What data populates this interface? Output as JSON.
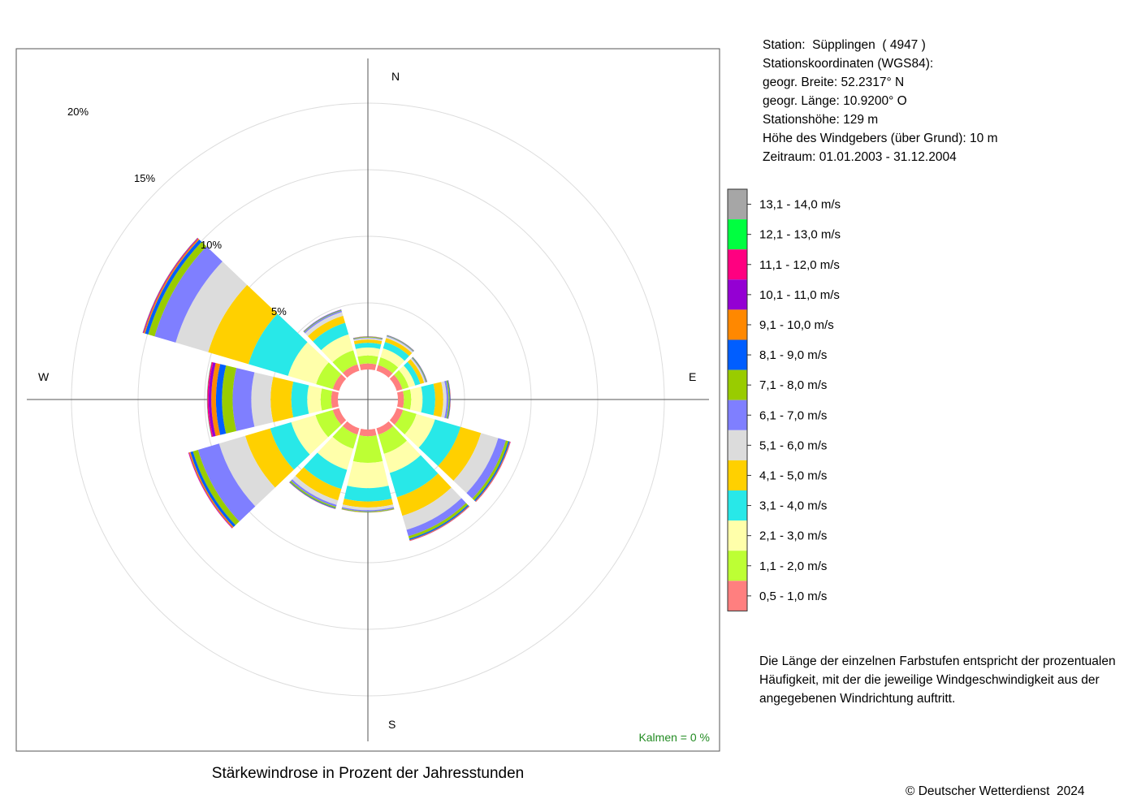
{
  "header": {
    "station": "Station:  Süpplingen  ( 4947 )",
    "coords_label": "Stationskoordinaten (WGS84):",
    "latitude": "geogr. Breite: 52.2317° N",
    "longitude": "geogr. Länge: 10.9200° O",
    "elevation": "Stationshöhe: 129 m",
    "anemometer_height": "Höhe des Windgebers (über Grund): 10 m",
    "period": "Zeitraum: 01.01.2003 - 31.12.2004"
  },
  "note": "Die Länge der einzelnen Farbstufen entspricht der prozentualen Häufigkeit, mit der die jeweilige Windgeschwindigkeit aus der angegebenen Windrichtung auftritt.",
  "footer": {
    "title": "Stärkewindrose in Prozent der Jahresstunden",
    "copyright": "© Deutscher Wetterdienst  2024"
  },
  "chart_data": {
    "type": "wind-rose",
    "title": "Stärkewindrose in Prozent der Jahresstunden",
    "unit": "%",
    "calm_label": "Kalmen  =  0 %",
    "compass_labels": [
      "N",
      "E",
      "S",
      "W"
    ],
    "radial_ticks": [
      5,
      10,
      15,
      20
    ],
    "radial_tick_labels": [
      "5%",
      "10%",
      "15%",
      "20%"
    ],
    "direction_step_deg": 30,
    "directions_deg": [
      0,
      30,
      60,
      90,
      120,
      150,
      180,
      210,
      240,
      270,
      300,
      330
    ],
    "classes": [
      {
        "label": "0,5 - 1,0 m/s",
        "color": "#ff7f7f"
      },
      {
        "label": "1,1 - 2,0 m/s",
        "color": "#bdff34"
      },
      {
        "label": "2,1 - 3,0 m/s",
        "color": "#ffffaa"
      },
      {
        "label": "3,1 - 4,0 m/s",
        "color": "#28e8e8"
      },
      {
        "label": "4,1 - 5,0 m/s",
        "color": "#ffd000"
      },
      {
        "label": "5,1 - 6,0 m/s",
        "color": "#dcdcdc"
      },
      {
        "label": "6,1 - 7,0 m/s",
        "color": "#7f7fff"
      },
      {
        "label": "7,1 - 8,0 m/s",
        "color": "#99cc00"
      },
      {
        "label": "8,1 - 9,0 m/s",
        "color": "#005eff"
      },
      {
        "label": "9,1 - 10,0 m/s",
        "color": "#ff8800"
      },
      {
        "label": "10,1 - 11,0 m/s",
        "color": "#9400d3"
      },
      {
        "label": "11,1 - 12,0 m/s",
        "color": "#ff0080"
      },
      {
        "label": "12,1 - 13,0 m/s",
        "color": "#00ff40"
      },
      {
        "label": "13,1 - 14,0 m/s",
        "color": "#a6a6a6"
      }
    ],
    "series": [
      {
        "direction": 0,
        "values": [
          0.45,
          0.6,
          0.6,
          0.35,
          0.25,
          0.1,
          0.05,
          0.05,
          0.02,
          0.01,
          0.01,
          0,
          0,
          0
        ]
      },
      {
        "direction": 30,
        "values": [
          0.45,
          0.6,
          0.7,
          0.5,
          0.3,
          0.12,
          0.05,
          0.04,
          0.02,
          0.01,
          0.01,
          0,
          0,
          0
        ]
      },
      {
        "direction": 60,
        "values": [
          0.45,
          0.5,
          0.5,
          0.4,
          0.3,
          0.1,
          0.05,
          0.05,
          0.03,
          0.01,
          0.01,
          0,
          0,
          0
        ]
      },
      {
        "direction": 90,
        "values": [
          0.45,
          0.55,
          0.85,
          0.95,
          0.6,
          0.25,
          0.15,
          0.08,
          0.05,
          0.02,
          0.01,
          0,
          0,
          0
        ]
      },
      {
        "direction": 120,
        "values": [
          0.5,
          1.05,
          1.45,
          2.0,
          1.6,
          1.35,
          0.6,
          0.2,
          0.1,
          0.05,
          0.02,
          0.01,
          0,
          0
        ]
      },
      {
        "direction": 150,
        "values": [
          0.5,
          1.5,
          1.5,
          1.9,
          1.45,
          1.1,
          0.5,
          0.2,
          0.1,
          0.05,
          0.02,
          0.01,
          0,
          0
        ]
      },
      {
        "direction": 180,
        "values": [
          0.5,
          2.0,
          1.9,
          1.0,
          0.45,
          0.2,
          0.1,
          0.05,
          0.02,
          0.01,
          0,
          0,
          0,
          0
        ]
      },
      {
        "direction": 210,
        "values": [
          0.5,
          1.1,
          1.65,
          1.5,
          0.9,
          0.35,
          0.15,
          0.1,
          0.05,
          0.02,
          0.01,
          0,
          0,
          0
        ]
      },
      {
        "direction": 240,
        "values": [
          0.5,
          1.35,
          1.9,
          1.65,
          1.95,
          2.05,
          1.65,
          0.4,
          0.2,
          0.1,
          0.04,
          0.02,
          0,
          0
        ]
      },
      {
        "direction": 270,
        "values": [
          0.5,
          0.8,
          1.0,
          1.2,
          1.55,
          1.45,
          1.4,
          0.8,
          0.45,
          0.35,
          0.2,
          0.1,
          0.02,
          0.01
        ]
      },
      {
        "direction": 300,
        "values": [
          0.5,
          1.3,
          2.2,
          3.1,
          3.15,
          2.55,
          1.65,
          0.5,
          0.25,
          0.1,
          0.05,
          0.03,
          0.01,
          0
        ]
      },
      {
        "direction": 330,
        "values": [
          0.5,
          1.1,
          1.25,
          0.9,
          0.55,
          0.3,
          0.1,
          0.05,
          0.03,
          0.01,
          0.01,
          0,
          0,
          0
        ]
      }
    ]
  }
}
